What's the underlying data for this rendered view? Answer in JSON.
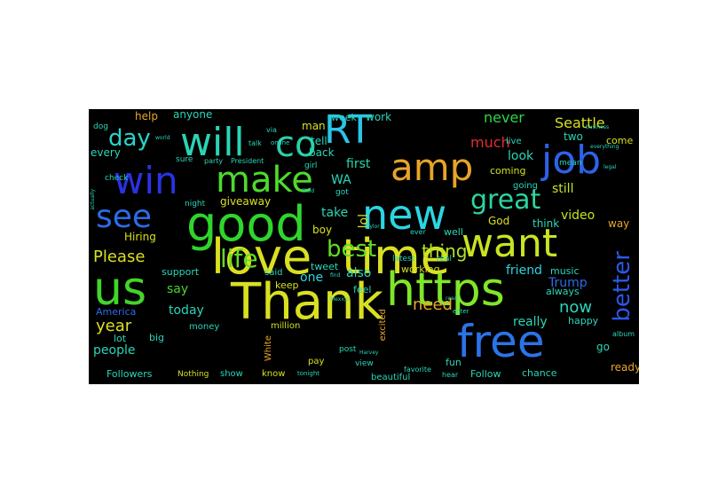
{
  "words": [
    {
      "text": "love",
      "color": "#d9e021",
      "size": 54
    },
    {
      "text": "time",
      "color": "#d9e021",
      "size": 54
    },
    {
      "text": "Thank",
      "color": "#d9e021",
      "size": 56
    },
    {
      "text": "https",
      "color": "#7fe629",
      "size": 52
    },
    {
      "text": "good",
      "color": "#2fd52d",
      "size": 54
    },
    {
      "text": "us",
      "color": "#43d42a",
      "size": 52
    },
    {
      "text": "free",
      "color": "#2c73e8",
      "size": 50
    },
    {
      "text": "want",
      "color": "#c9e322",
      "size": 44
    },
    {
      "text": "new",
      "color": "#2ad6e2",
      "size": 46
    },
    {
      "text": "amp",
      "color": "#e7a428",
      "size": 42
    },
    {
      "text": "job",
      "color": "#2c63e8",
      "size": 44
    },
    {
      "text": "will",
      "color": "#2ad4b4",
      "size": 44
    },
    {
      "text": "co",
      "color": "#2ad1a9",
      "size": 40
    },
    {
      "text": "RT",
      "color": "#2ac5e6",
      "size": 44
    },
    {
      "text": "win",
      "color": "#2a32e4",
      "size": 42
    },
    {
      "text": "make",
      "color": "#4ddb2b",
      "size": 40
    },
    {
      "text": "see",
      "color": "#2c6be8",
      "size": 36
    },
    {
      "text": "great",
      "color": "#2ad6a0",
      "size": 30
    },
    {
      "text": "best",
      "color": "#62dc29",
      "size": 26
    },
    {
      "text": "life",
      "color": "#62dc29",
      "size": 28
    },
    {
      "text": "better",
      "color": "#2c58e8",
      "size": 26
    },
    {
      "text": "day",
      "color": "#2ad4c9",
      "size": 26
    },
    {
      "text": "Please",
      "color": "#d9e021",
      "size": 18
    },
    {
      "text": "thing",
      "color": "#aee325",
      "size": 20
    },
    {
      "text": "need",
      "color": "#e8a728",
      "size": 18
    },
    {
      "text": "year",
      "color": "#e0e020",
      "size": 18
    },
    {
      "text": "much",
      "color": "#e42c2c",
      "size": 16
    },
    {
      "text": "now",
      "color": "#2ad6b9",
      "size": 18
    },
    {
      "text": "never",
      "color": "#2ad648",
      "size": 16
    },
    {
      "text": "Seattle",
      "color": "#d8e020",
      "size": 16
    },
    {
      "text": "still",
      "color": "#c5e222",
      "size": 14
    },
    {
      "text": "video",
      "color": "#c5e222",
      "size": 14
    },
    {
      "text": "really",
      "color": "#2ad6b6",
      "size": 14
    },
    {
      "text": "giveaway",
      "color": "#d8e020",
      "size": 12
    },
    {
      "text": "take",
      "color": "#2ad6b6",
      "size": 14
    },
    {
      "text": "first",
      "color": "#2ad6ab",
      "size": 14
    },
    {
      "text": "say",
      "color": "#4bd32a",
      "size": 14
    },
    {
      "text": "today",
      "color": "#2ad6b9",
      "size": 14
    },
    {
      "text": "people",
      "color": "#2ad6b9",
      "size": 14
    },
    {
      "text": "Trump",
      "color": "#2c6be8",
      "size": 14
    },
    {
      "text": "friend",
      "color": "#2ad6e2",
      "size": 14
    },
    {
      "text": "look",
      "color": "#2ad6b6",
      "size": 14
    },
    {
      "text": "also",
      "color": "#2ad6b9",
      "size": 14
    },
    {
      "text": "one",
      "color": "#2ad6e2",
      "size": 14
    },
    {
      "text": "lol",
      "color": "#d8e020",
      "size": 14
    },
    {
      "text": "WA",
      "color": "#2ad6b9",
      "size": 14
    },
    {
      "text": "man",
      "color": "#d8e020",
      "size": 12
    },
    {
      "text": "tell",
      "color": "#2ad6b9",
      "size": 12
    },
    {
      "text": "back",
      "color": "#2ad6b9",
      "size": 12
    },
    {
      "text": "every",
      "color": "#2ad6b9",
      "size": 12
    },
    {
      "text": "help",
      "color": "#e8a728",
      "size": 12
    },
    {
      "text": "anyone",
      "color": "#2ad6b9",
      "size": 12
    },
    {
      "text": "week",
      "color": "#2ad6b9",
      "size": 11
    },
    {
      "text": "work",
      "color": "#2ad6b9",
      "size": 12
    },
    {
      "text": "two",
      "color": "#2ad6b9",
      "size": 12
    },
    {
      "text": "come",
      "color": "#d8e020",
      "size": 11
    },
    {
      "text": "coming",
      "color": "#d8e020",
      "size": 11
    },
    {
      "text": "God",
      "color": "#d8e020",
      "size": 12
    },
    {
      "text": "think",
      "color": "#2ad6b9",
      "size": 12
    },
    {
      "text": "way",
      "color": "#e8a728",
      "size": 12
    },
    {
      "text": "Hiring",
      "color": "#d8e020",
      "size": 12
    },
    {
      "text": "boy",
      "color": "#d8e020",
      "size": 12
    },
    {
      "text": "well",
      "color": "#2ad6b9",
      "size": 11
    },
    {
      "text": "music",
      "color": "#2ad6b9",
      "size": 11
    },
    {
      "text": "happy",
      "color": "#2ad6b9",
      "size": 11
    },
    {
      "text": "support",
      "color": "#2ad6b9",
      "size": 11
    },
    {
      "text": "keep",
      "color": "#d8e020",
      "size": 11
    },
    {
      "text": "tweet",
      "color": "#2ad6b9",
      "size": 11
    },
    {
      "text": "working",
      "color": "#d8e020",
      "size": 11
    },
    {
      "text": "feel",
      "color": "#2ad6b9",
      "size": 11
    },
    {
      "text": "always",
      "color": "#2ad6b9",
      "size": 11
    },
    {
      "text": "America",
      "color": "#2c6be8",
      "size": 11
    },
    {
      "text": "lot",
      "color": "#2ad6b9",
      "size": 11
    },
    {
      "text": "big",
      "color": "#2ad6b9",
      "size": 11
    },
    {
      "text": "money",
      "color": "#2ad6b9",
      "size": 10
    },
    {
      "text": "million",
      "color": "#d8e020",
      "size": 10
    },
    {
      "text": "White",
      "color": "#e8a728",
      "size": 10
    },
    {
      "text": "excited",
      "color": "#e8a728",
      "size": 10
    },
    {
      "text": "pay",
      "color": "#d8e020",
      "size": 10
    },
    {
      "text": "fun",
      "color": "#2ad6b9",
      "size": 11
    },
    {
      "text": "ready",
      "color": "#e8a728",
      "size": 12
    },
    {
      "text": "go",
      "color": "#2ad6b9",
      "size": 12
    },
    {
      "text": "chance",
      "color": "#2ad6b9",
      "size": 11
    },
    {
      "text": "Follow",
      "color": "#2ad6b9",
      "size": 11
    },
    {
      "text": "Followers",
      "color": "#2ad6b9",
      "size": 11
    },
    {
      "text": "Nothing",
      "color": "#d8e020",
      "size": 9
    },
    {
      "text": "show",
      "color": "#2ad6b9",
      "size": 10
    },
    {
      "text": "know",
      "color": "#d8e020",
      "size": 10
    },
    {
      "text": "beautiful",
      "color": "#2ad6b9",
      "size": 10
    },
    {
      "text": "view",
      "color": "#2ad6b9",
      "size": 9
    },
    {
      "text": "post",
      "color": "#2ad6b9",
      "size": 9
    },
    {
      "text": "hear",
      "color": "#2ad6b9",
      "size": 8
    },
    {
      "text": "said",
      "color": "#2ad6b9",
      "size": 10
    },
    {
      "text": "latest",
      "color": "#2ad6b9",
      "size": 9
    },
    {
      "text": "real",
      "color": "#2ad6b9",
      "size": 9
    },
    {
      "text": "got",
      "color": "#2ad6b9",
      "size": 9
    },
    {
      "text": "live",
      "color": "#2ad6b9",
      "size": 10
    },
    {
      "text": "going",
      "color": "#2ad6b9",
      "size": 10
    },
    {
      "text": "mean",
      "color": "#2ad6b9",
      "size": 9
    },
    {
      "text": "night",
      "color": "#2ad6b9",
      "size": 9
    },
    {
      "text": "girl",
      "color": "#2ad6b9",
      "size": 9
    },
    {
      "text": "talk",
      "color": "#2ad6b9",
      "size": 8
    },
    {
      "text": "sure",
      "color": "#2ad6b9",
      "size": 9
    },
    {
      "text": "party",
      "color": "#2ad6b9",
      "size": 8
    },
    {
      "text": "President",
      "color": "#2ad6b9",
      "size": 8
    },
    {
      "text": "check",
      "color": "#2ad6b9",
      "size": 9
    },
    {
      "text": "dog",
      "color": "#2ad6b9",
      "size": 9
    },
    {
      "text": "via",
      "color": "#2ad6b9",
      "size": 8
    },
    {
      "text": "ever",
      "color": "#2ad6b9",
      "size": 8
    },
    {
      "text": "favorite",
      "color": "#2ad6b9",
      "size": 8
    },
    {
      "text": "album",
      "color": "#2ad6b9",
      "size": 8
    },
    {
      "text": "online",
      "color": "#2ad6b9",
      "size": 7
    },
    {
      "text": "enter",
      "color": "#2ad6b9",
      "size": 7
    },
    {
      "text": "tonight",
      "color": "#2ad6b9",
      "size": 7
    },
    {
      "text": "business",
      "color": "#2ad6b9",
      "size": 6
    },
    {
      "text": "world",
      "color": "#2ad6b9",
      "size": 6
    },
    {
      "text": "actually",
      "color": "#2ad6b9",
      "size": 6
    },
    {
      "text": "Mexico",
      "color": "#2ad6b9",
      "size": 6
    },
    {
      "text": "Harvey",
      "color": "#2ad6b9",
      "size": 6
    },
    {
      "text": "everything",
      "color": "#2ad6b9",
      "size": 6
    },
    {
      "text": "legal",
      "color": "#2ad6b9",
      "size": 6
    },
    {
      "text": "read",
      "color": "#2ad6b9",
      "size": 6
    },
    {
      "text": "liked",
      "color": "#2ad6b9",
      "size": 6
    },
    {
      "text": "find",
      "color": "#2ad6b9",
      "size": 6
    },
    {
      "text": "Taylor",
      "color": "#2ad6b9",
      "size": 6
    }
  ]
}
